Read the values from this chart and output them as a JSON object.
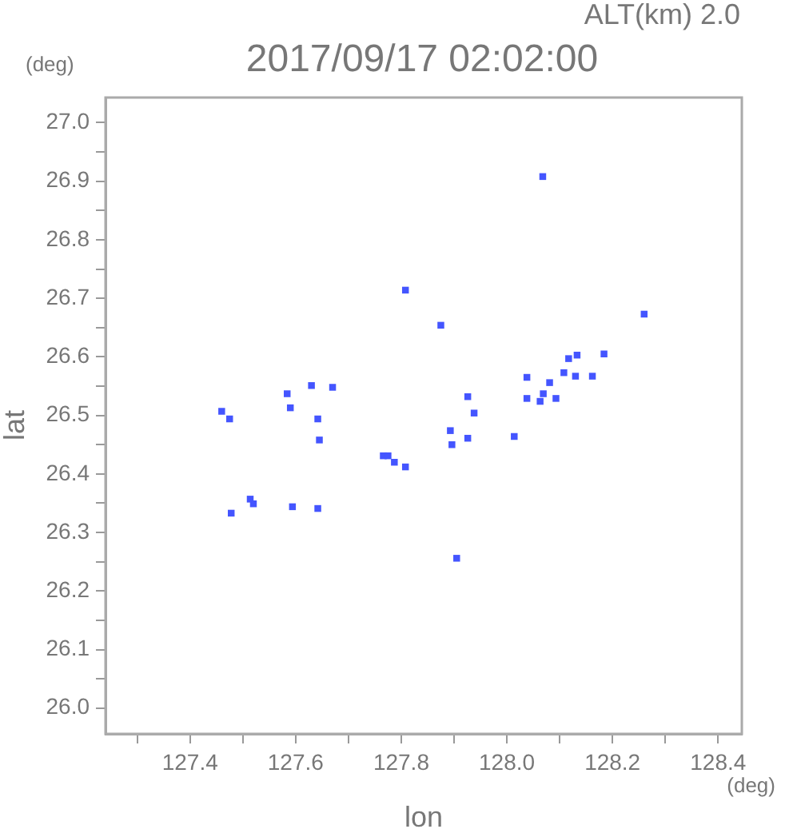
{
  "chart_data": {
    "type": "scatter",
    "title": "2017/09/17 02:02:00",
    "xlabel": "lon",
    "ylabel": "lat",
    "annotations": [
      "ALT(km) 2.0",
      "(deg)",
      "(deg)"
    ],
    "xlim": [
      127.24,
      128.445
    ],
    "ylim": [
      25.956,
      27.043
    ],
    "xticks": [
      {
        "value": 127.3,
        "label": null
      },
      127.4,
      {
        "value": 127.5,
        "label": null
      },
      127.6,
      {
        "value": 127.7,
        "label": null
      },
      127.8,
      {
        "value": 127.9,
        "label": null
      },
      {
        "value": 128.0,
        "label": "128.0"
      },
      {
        "value": 128.1,
        "label": null
      },
      128.2,
      {
        "value": 128.3,
        "label": null
      },
      128.4
    ],
    "yticks": [
      {
        "value": 26.0,
        "label": "26.0"
      },
      {
        "value": 26.05,
        "label": null
      },
      26.1,
      {
        "value": 26.15,
        "label": null
      },
      26.2,
      {
        "value": 26.25,
        "label": null
      },
      26.3,
      {
        "value": 26.35,
        "label": null
      },
      26.4,
      {
        "value": 26.45,
        "label": null
      },
      26.5,
      {
        "value": 26.55,
        "label": null
      },
      26.6,
      {
        "value": 26.65,
        "label": null
      },
      26.7,
      {
        "value": 26.75,
        "label": null
      },
      26.8,
      {
        "value": 26.85,
        "label": null
      },
      26.9,
      {
        "value": 26.95,
        "label": null
      },
      {
        "value": 27.0,
        "label": "27.0"
      }
    ],
    "grid": false,
    "legend": false,
    "marker": "square",
    "series": [
      {
        "color": "#4455ff",
        "x": [
          128.068,
          127.808,
          127.875,
          128.26,
          128.184,
          128.13,
          128.162,
          128.108,
          128.133,
          128.038,
          128.081,
          128.069,
          128.038,
          128.063,
          128.093,
          127.926,
          127.938,
          127.926,
          128.014,
          128.117,
          127.46,
          127.475,
          127.584,
          127.63,
          127.67,
          127.59,
          127.642,
          127.645,
          127.766,
          127.775,
          127.787,
          127.808,
          127.478,
          127.514,
          127.52,
          127.594,
          127.642,
          127.905,
          127.893,
          127.896
        ],
        "values": [
          26.908,
          26.714,
          26.654,
          26.673,
          26.605,
          26.567,
          26.567,
          26.573,
          26.603,
          26.565,
          26.556,
          26.537,
          26.529,
          26.524,
          26.529,
          26.532,
          26.504,
          26.461,
          26.464,
          26.597,
          26.507,
          26.494,
          26.537,
          26.551,
          26.548,
          26.513,
          26.494,
          26.458,
          26.431,
          26.431,
          26.42,
          26.412,
          26.333,
          26.357,
          26.349,
          26.344,
          26.341,
          26.256,
          26.474,
          26.45
        ]
      }
    ]
  }
}
